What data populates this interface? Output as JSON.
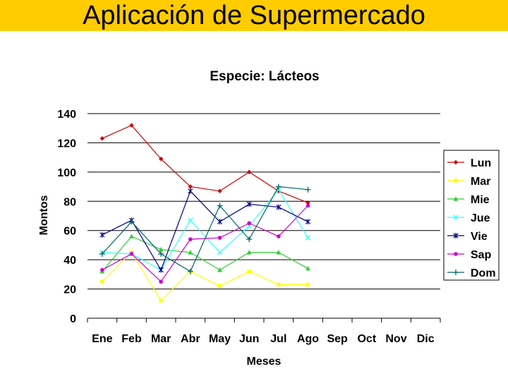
{
  "slide": {
    "title": "Aplicación de Supermercado"
  },
  "chart_data": {
    "type": "line",
    "title": "Especie: Lácteos",
    "xlabel": "Meses",
    "ylabel": "Montos",
    "ylim": [
      0,
      140
    ],
    "yticks": [
      0,
      20,
      40,
      60,
      80,
      100,
      120,
      140
    ],
    "grid": "horizontal major gridlines",
    "legend": "right",
    "categories": [
      "Ene",
      "Feb",
      "Mar",
      "Abr",
      "May",
      "Jun",
      "Jul",
      "Ago",
      "Sep",
      "Oct",
      "Nov",
      "Dic"
    ],
    "series": [
      {
        "name": "Lun",
        "color": "#cc0000",
        "marker": "diamond",
        "values": [
          123,
          132,
          109,
          90,
          87,
          100,
          87,
          79,
          null,
          null,
          null,
          null
        ]
      },
      {
        "name": "Mar",
        "color": "#ffff00",
        "marker": "square",
        "values": [
          25,
          45,
          12,
          32,
          22,
          32,
          23,
          23,
          null,
          null,
          null,
          null
        ]
      },
      {
        "name": "Mie",
        "color": "#33cc33",
        "marker": "triangle",
        "values": [
          32,
          56,
          47,
          45,
          33,
          45,
          45,
          34,
          null,
          null,
          null,
          null
        ]
      },
      {
        "name": "Jue",
        "color": "#33ffff",
        "marker": "x",
        "values": [
          45,
          44,
          33,
          67,
          45,
          63,
          88,
          55,
          null,
          null,
          null,
          null
        ]
      },
      {
        "name": "Vie",
        "color": "#000080",
        "marker": "star",
        "values": [
          57,
          67,
          33,
          87,
          66,
          78,
          76,
          66,
          null,
          null,
          null,
          null
        ]
      },
      {
        "name": "Sap",
        "color": "#cc00cc",
        "marker": "circle",
        "values": [
          33,
          44,
          25,
          54,
          55,
          65,
          56,
          77,
          null,
          null,
          null,
          null
        ]
      },
      {
        "name": "Dom",
        "color": "#006666",
        "marker": "plus",
        "values": [
          44,
          66,
          44,
          32,
          77,
          54,
          90,
          88,
          null,
          null,
          null,
          null
        ]
      }
    ]
  }
}
